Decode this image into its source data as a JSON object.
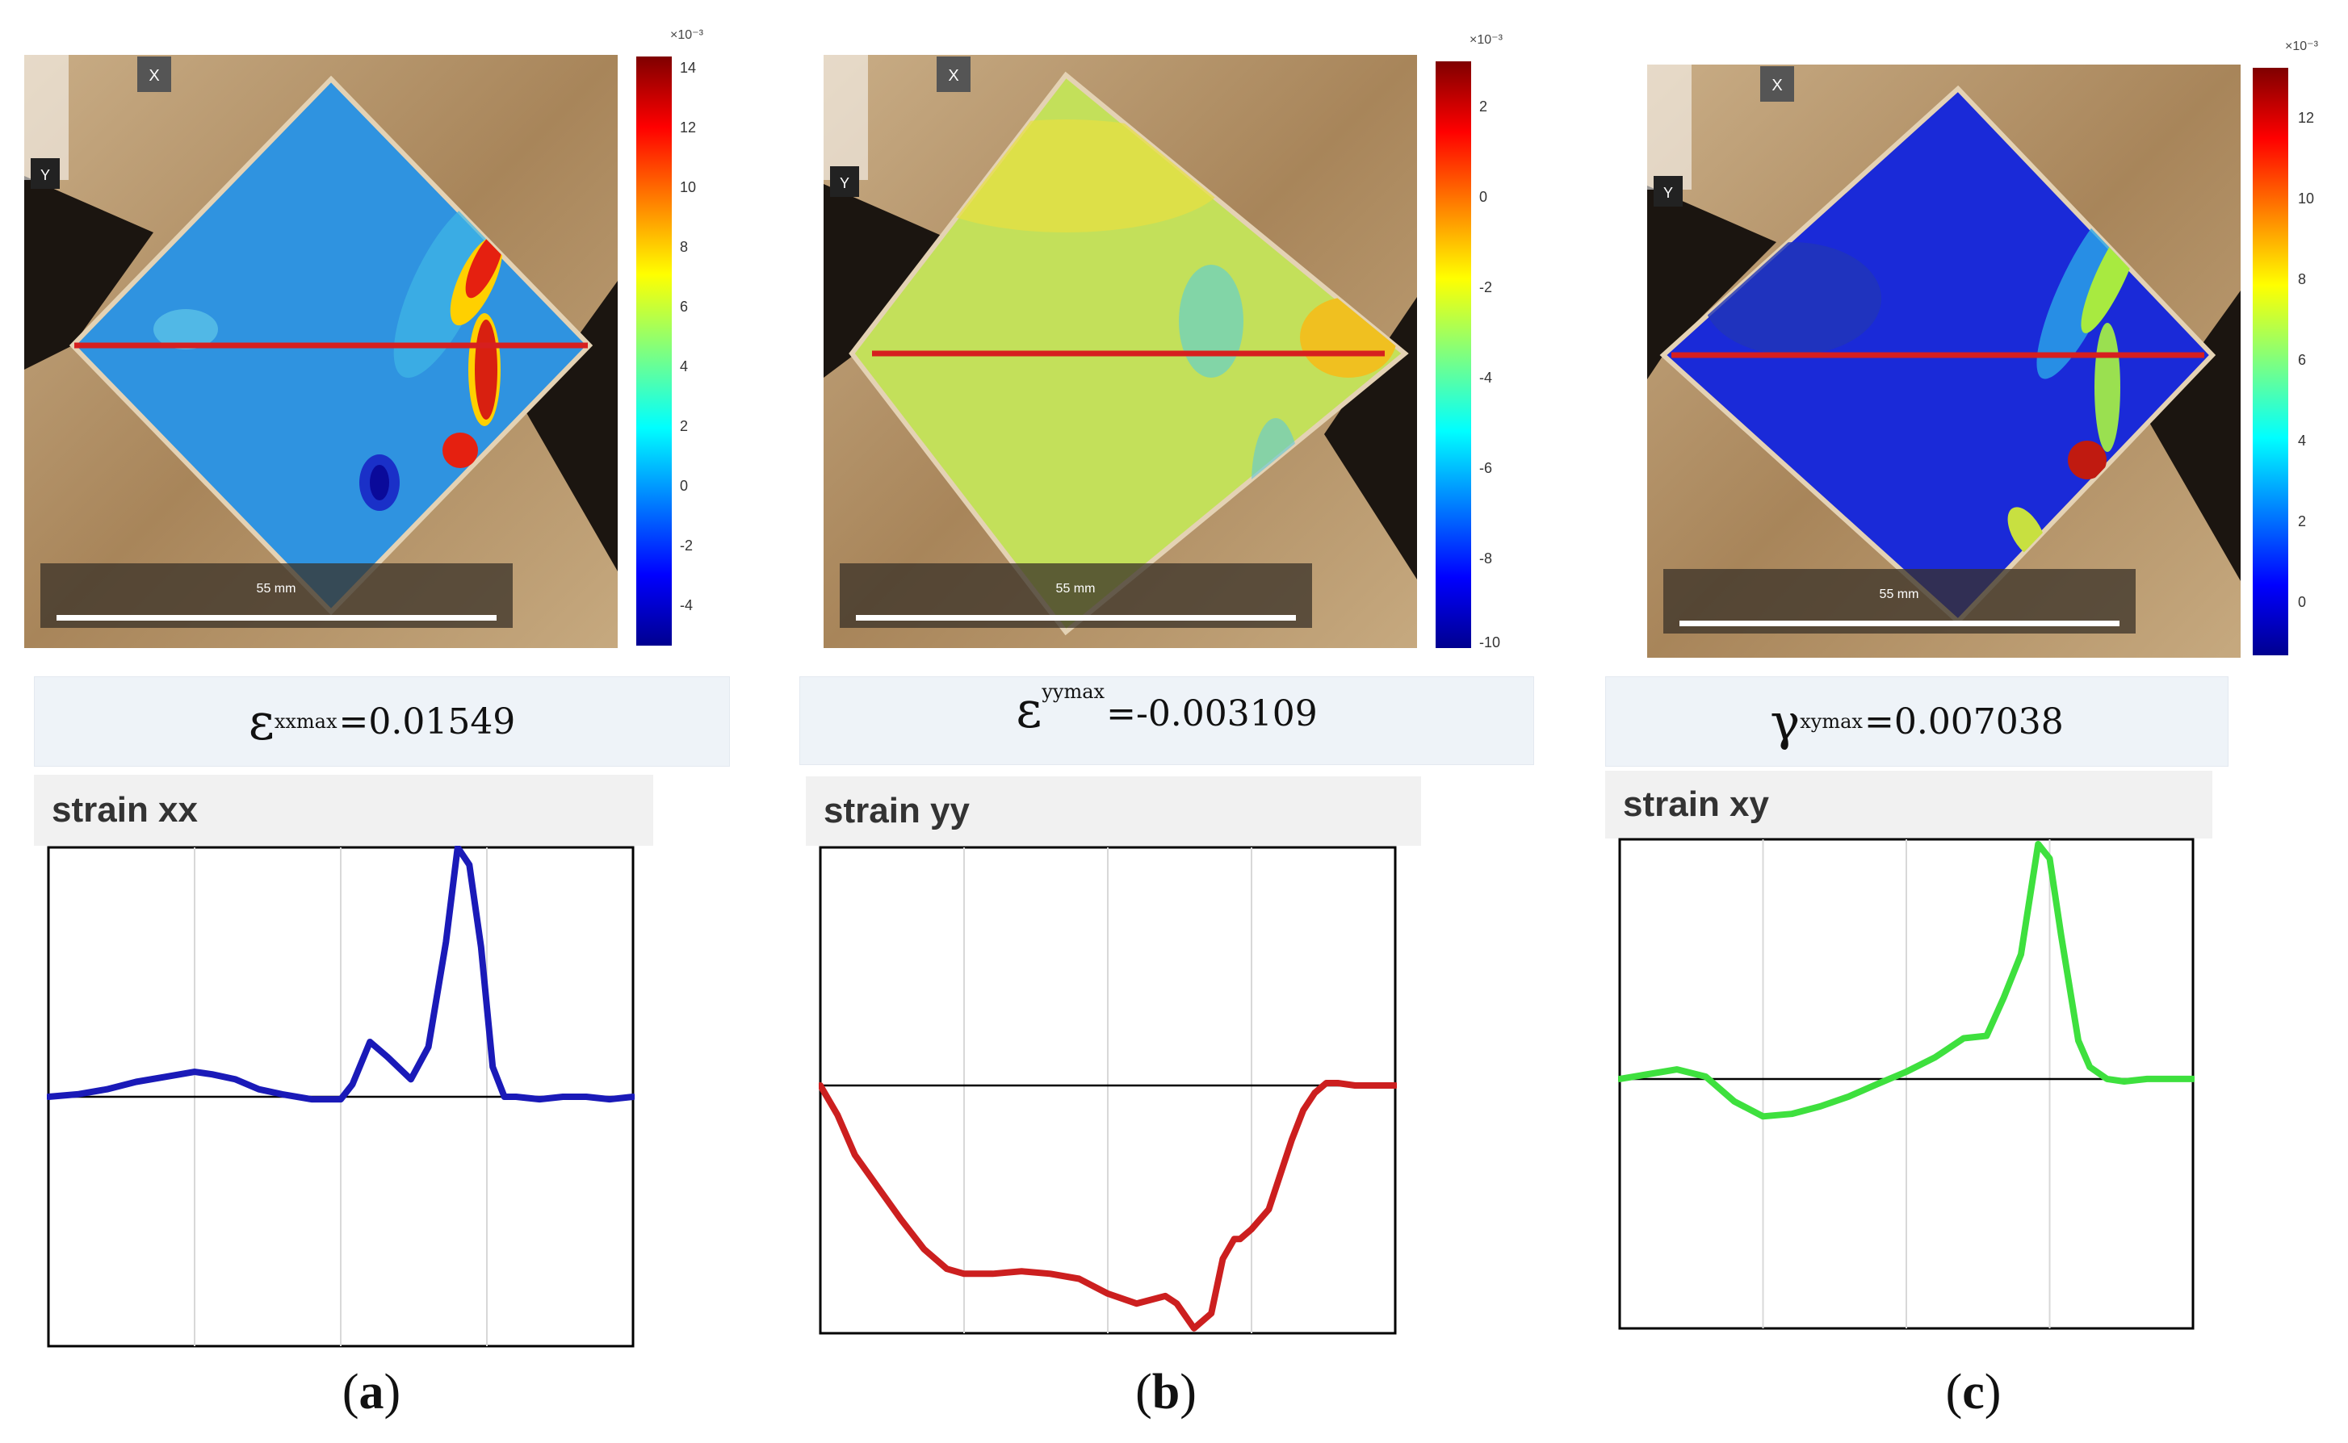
{
  "panels": [
    {
      "id": "a",
      "caption_letter": "a",
      "colorbar_exponent": "×10⁻³",
      "colorbar_ticks": [
        "14",
        "12",
        "10",
        "8",
        "6",
        "4",
        "2",
        "0",
        "-2",
        "-4"
      ],
      "axis_x": "X",
      "axis_y": "Y",
      "scale_label": "55 mm",
      "formula": {
        "symbol": "ε",
        "sub": "xxmax",
        "value": "=0.01549"
      },
      "strain_title": "strain xx",
      "line_color": "#1a1ab8"
    },
    {
      "id": "b",
      "caption_letter": "b",
      "colorbar_exponent": "×10⁻³",
      "colorbar_ticks": [
        "2",
        "0",
        "-2",
        "-4",
        "-6",
        "-8",
        "-10"
      ],
      "axis_x": "X",
      "axis_y": "Y",
      "scale_label": "55 mm",
      "formula": {
        "symbol": "ε",
        "sub": "yymax",
        "value": "=-0.003109"
      },
      "strain_title": "strain yy",
      "line_color": "#cc1f1f"
    },
    {
      "id": "c",
      "caption_letter": "c",
      "colorbar_exponent": "×10⁻³",
      "colorbar_ticks": [
        "12",
        "10",
        "8",
        "6",
        "4",
        "2",
        "0"
      ],
      "axis_x": "X",
      "axis_y": "Y",
      "scale_label": "55 mm",
      "formula": {
        "symbol": "γ",
        "sub": "xymax",
        "value": "=0.007038"
      },
      "strain_title": "strain xy",
      "line_color": "#3ee03e"
    }
  ],
  "chart_data": [
    {
      "type": "line",
      "title": "strain xx",
      "xlim": [
        0,
        100
      ],
      "ylim": [
        -1,
        1
      ],
      "x": [
        0,
        5,
        10,
        15,
        20,
        25,
        28,
        32,
        36,
        40,
        45,
        50,
        52,
        55,
        58,
        62,
        65,
        68,
        70,
        72,
        74,
        76,
        78,
        80,
        84,
        88,
        92,
        96,
        100
      ],
      "y": [
        0,
        0.01,
        0.03,
        0.06,
        0.08,
        0.1,
        0.09,
        0.07,
        0.03,
        0.01,
        -0.01,
        -0.01,
        0.05,
        0.22,
        0.16,
        0.07,
        0.2,
        0.62,
        1.0,
        0.93,
        0.6,
        0.12,
        0.0,
        0.0,
        -0.01,
        0.0,
        0.0,
        -0.01,
        0.0
      ]
    },
    {
      "type": "line",
      "title": "strain yy",
      "xlim": [
        0,
        100
      ],
      "ylim": [
        -1,
        1
      ],
      "x": [
        0,
        3,
        6,
        10,
        14,
        18,
        22,
        25,
        30,
        35,
        40,
        45,
        50,
        55,
        60,
        62,
        65,
        68,
        70,
        72,
        73,
        75,
        78,
        80,
        82,
        84,
        86,
        88,
        90,
        93,
        96,
        100
      ],
      "y": [
        0,
        -0.12,
        -0.28,
        -0.41,
        -0.54,
        -0.66,
        -0.74,
        -0.76,
        -0.76,
        -0.75,
        -0.76,
        -0.78,
        -0.84,
        -0.88,
        -0.85,
        -0.88,
        -0.98,
        -0.92,
        -0.7,
        -0.62,
        -0.62,
        -0.58,
        -0.5,
        -0.36,
        -0.22,
        -0.1,
        -0.03,
        0.01,
        0.01,
        0.0,
        0.0,
        0.0
      ]
    },
    {
      "type": "line",
      "title": "strain xy",
      "xlim": [
        0,
        100
      ],
      "ylim": [
        -1,
        1
      ],
      "x": [
        0,
        5,
        10,
        15,
        20,
        25,
        30,
        35,
        40,
        45,
        50,
        55,
        60,
        64,
        67,
        70,
        73,
        75,
        77,
        80,
        82,
        85,
        88,
        92,
        96,
        100
      ],
      "y": [
        0,
        0.02,
        0.04,
        0.01,
        -0.09,
        -0.15,
        -0.14,
        -0.11,
        -0.07,
        -0.02,
        0.03,
        0.09,
        0.17,
        0.18,
        0.34,
        0.52,
        0.98,
        0.92,
        0.6,
        0.16,
        0.05,
        0.0,
        -0.01,
        0.0,
        0.0,
        0.0
      ]
    }
  ]
}
